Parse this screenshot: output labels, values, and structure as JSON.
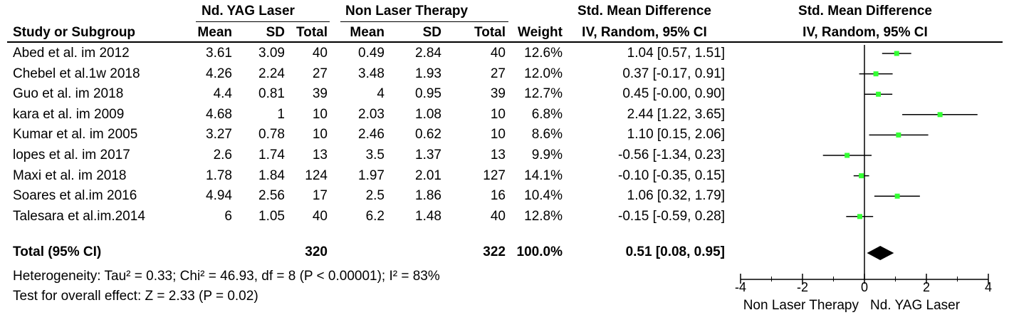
{
  "headers": {
    "group1": "Nd. YAG Laser",
    "group2": "Non Laser Therapy",
    "smd_title": "Std. Mean Difference",
    "smd_sub": "IV, Random, 95% CI",
    "plot_title": "Std. Mean Difference",
    "plot_sub": "IV, Random, 95% CI",
    "study": "Study or Subgroup",
    "mean1": "Mean",
    "sd1": "SD",
    "total1": "Total",
    "mean2": "Mean",
    "sd2": "SD",
    "total2": "Total",
    "weight": "Weight"
  },
  "rows": [
    {
      "study": "Abed et al. im  2012",
      "mean1": "3.61",
      "sd1": "3.09",
      "total1": "40",
      "mean2": "0.49",
      "sd2": "2.84",
      "total2": "40",
      "weight": "12.6%",
      "ci": "1.04 [0.57, 1.51]"
    },
    {
      "study": "Chebel et al.1w  2018",
      "mean1": "4.26",
      "sd1": "2.24",
      "total1": "27",
      "mean2": "3.48",
      "sd2": "1.93",
      "total2": "27",
      "weight": "12.0%",
      "ci": "0.37 [-0.17, 0.91]"
    },
    {
      "study": "Guo et al. im 2018",
      "mean1": "4.4",
      "sd1": "0.81",
      "total1": "39",
      "mean2": "4",
      "sd2": "0.95",
      "total2": "39",
      "weight": "12.7%",
      "ci": "0.45 [-0.00, 0.90]"
    },
    {
      "study": "kara et al. im 2009",
      "mean1": "4.68",
      "sd1": "1",
      "total1": "10",
      "mean2": "2.03",
      "sd2": "1.08",
      "total2": "10",
      "weight": "6.8%",
      "ci": "2.44 [1.22, 3.65]"
    },
    {
      "study": "Kumar et al. im 2005",
      "mean1": "3.27",
      "sd1": "0.78",
      "total1": "10",
      "mean2": "2.46",
      "sd2": "0.62",
      "total2": "10",
      "weight": "8.6%",
      "ci": "1.10 [0.15, 2.06]"
    },
    {
      "study": "lopes et al. im  2017",
      "mean1": "2.6",
      "sd1": "1.74",
      "total1": "13",
      "mean2": "3.5",
      "sd2": "1.37",
      "total2": "13",
      "weight": "9.9%",
      "ci": "-0.56 [-1.34, 0.23]"
    },
    {
      "study": "Maxi et al. im 2018",
      "mean1": "1.78",
      "sd1": "1.84",
      "total1": "124",
      "mean2": "1.97",
      "sd2": "2.01",
      "total2": "127",
      "weight": "14.1%",
      "ci": "-0.10 [-0.35, 0.15]"
    },
    {
      "study": "Soares et al.im 2016",
      "mean1": "4.94",
      "sd1": "2.56",
      "total1": "17",
      "mean2": "2.5",
      "sd2": "1.86",
      "total2": "16",
      "weight": "10.4%",
      "ci": "1.06 [0.32, 1.79]"
    },
    {
      "study": "Talesara et al.im.2014",
      "mean1": "6",
      "sd1": "1.05",
      "total1": "40",
      "mean2": "6.2",
      "sd2": "1.48",
      "total2": "40",
      "weight": "12.8%",
      "ci": "-0.15 [-0.59, 0.28]"
    }
  ],
  "total": {
    "label": "Total (95% CI)",
    "total1": "320",
    "total2": "322",
    "weight": "100.0%",
    "ci": "0.51 [0.08, 0.95]"
  },
  "footer": {
    "heterogeneity": "Heterogeneity: Tau² = 0.33; Chi² = 46.93, df = 8 (P < 0.00001); I² = 83%",
    "overall": "Test for overall effect: Z = 2.33 (P = 0.02)"
  },
  "chart_data": {
    "type": "scatter",
    "title": "Std. Mean Difference",
    "subtitle": "IV, Random, 95% CI",
    "xlim": [
      -4,
      4
    ],
    "ticks": [
      "-4",
      "-2",
      "0",
      "2",
      "4"
    ],
    "xlabel_left": "Non Laser Therapy",
    "xlabel_right": "Nd. YAG Laser",
    "points": [
      {
        "est": 1.04,
        "lo": 0.57,
        "hi": 1.51
      },
      {
        "est": 0.37,
        "lo": -0.17,
        "hi": 0.91
      },
      {
        "est": 0.45,
        "lo": -0.0,
        "hi": 0.9
      },
      {
        "est": 2.44,
        "lo": 1.22,
        "hi": 3.65
      },
      {
        "est": 1.1,
        "lo": 0.15,
        "hi": 2.06
      },
      {
        "est": -0.56,
        "lo": -1.34,
        "hi": 0.23
      },
      {
        "est": -0.1,
        "lo": -0.35,
        "hi": 0.15
      },
      {
        "est": 1.06,
        "lo": 0.32,
        "hi": 1.79
      },
      {
        "est": -0.15,
        "lo": -0.59,
        "hi": 0.28
      }
    ],
    "pooled": {
      "est": 0.51,
      "lo": 0.08,
      "hi": 0.95
    },
    "marker_color": "#33ff33"
  }
}
